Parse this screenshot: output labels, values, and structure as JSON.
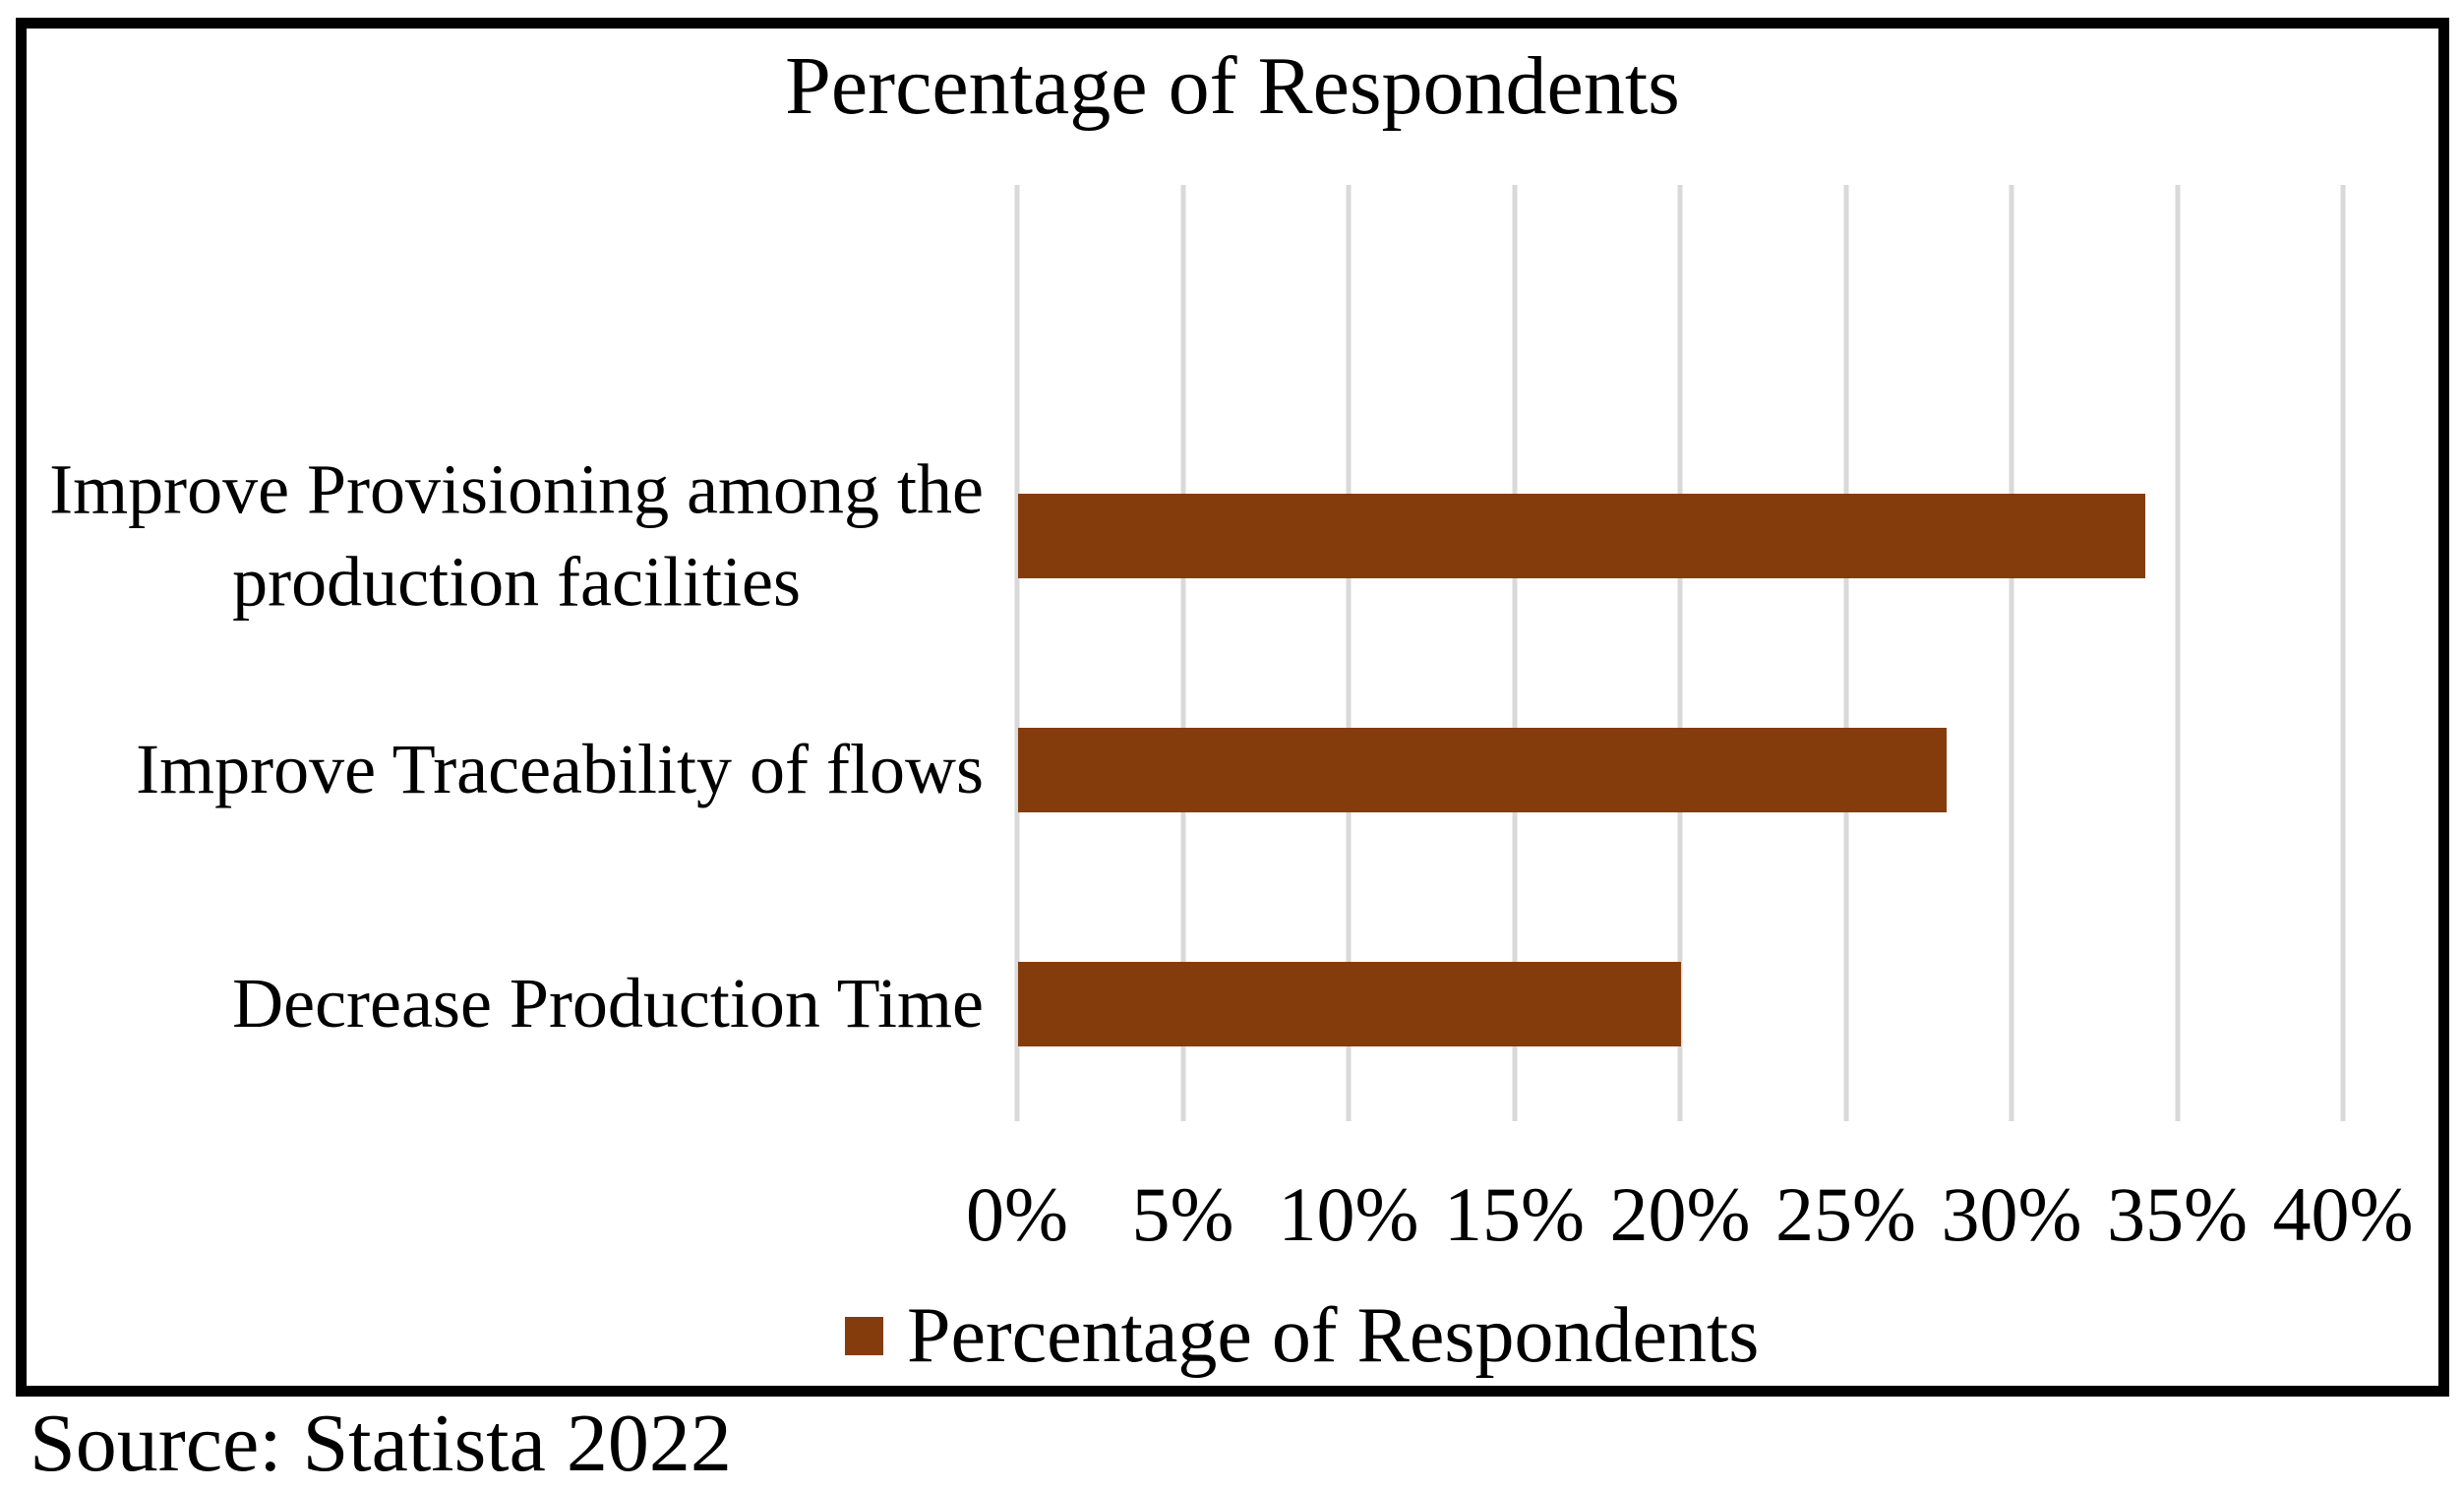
{
  "chart": {
    "title": "Percentage of Respondents",
    "legend_label": "Percentage of Respondents"
  },
  "source_note": "Source: Statista 2022",
  "colors": {
    "bar": "#843C0C",
    "gridline": "#D9D9D9",
    "frame_border": "#000000",
    "text": "#000000",
    "background": "#FFFFFF"
  },
  "chart_data": {
    "type": "bar",
    "orientation": "horizontal",
    "title": "Percentage of Respondents",
    "categories": [
      "Improve Provisioning among the production facilities",
      "Improve Traceability of flows",
      "Decrease Production Time"
    ],
    "category_lines": [
      [
        "Improve Provisioning among the",
        "production facilities"
      ],
      [
        "Improve Traceability of flows"
      ],
      [
        "Decrease Production Time"
      ]
    ],
    "values": [
      34,
      28,
      20
    ],
    "unit": "%",
    "xlim": [
      0,
      40
    ],
    "x_tick_values": [
      0,
      5,
      10,
      15,
      20,
      25,
      30,
      35,
      40
    ],
    "x_tick_labels": [
      "0%",
      "5%",
      "10%",
      "15%",
      "20%",
      "25%",
      "30%",
      "35%",
      "40%"
    ],
    "series": [
      {
        "name": "Percentage of Respondents",
        "values": [
          34,
          28,
          20
        ]
      }
    ],
    "legend_position": "bottom",
    "grid": "vertical",
    "gridlines_on": true
  }
}
